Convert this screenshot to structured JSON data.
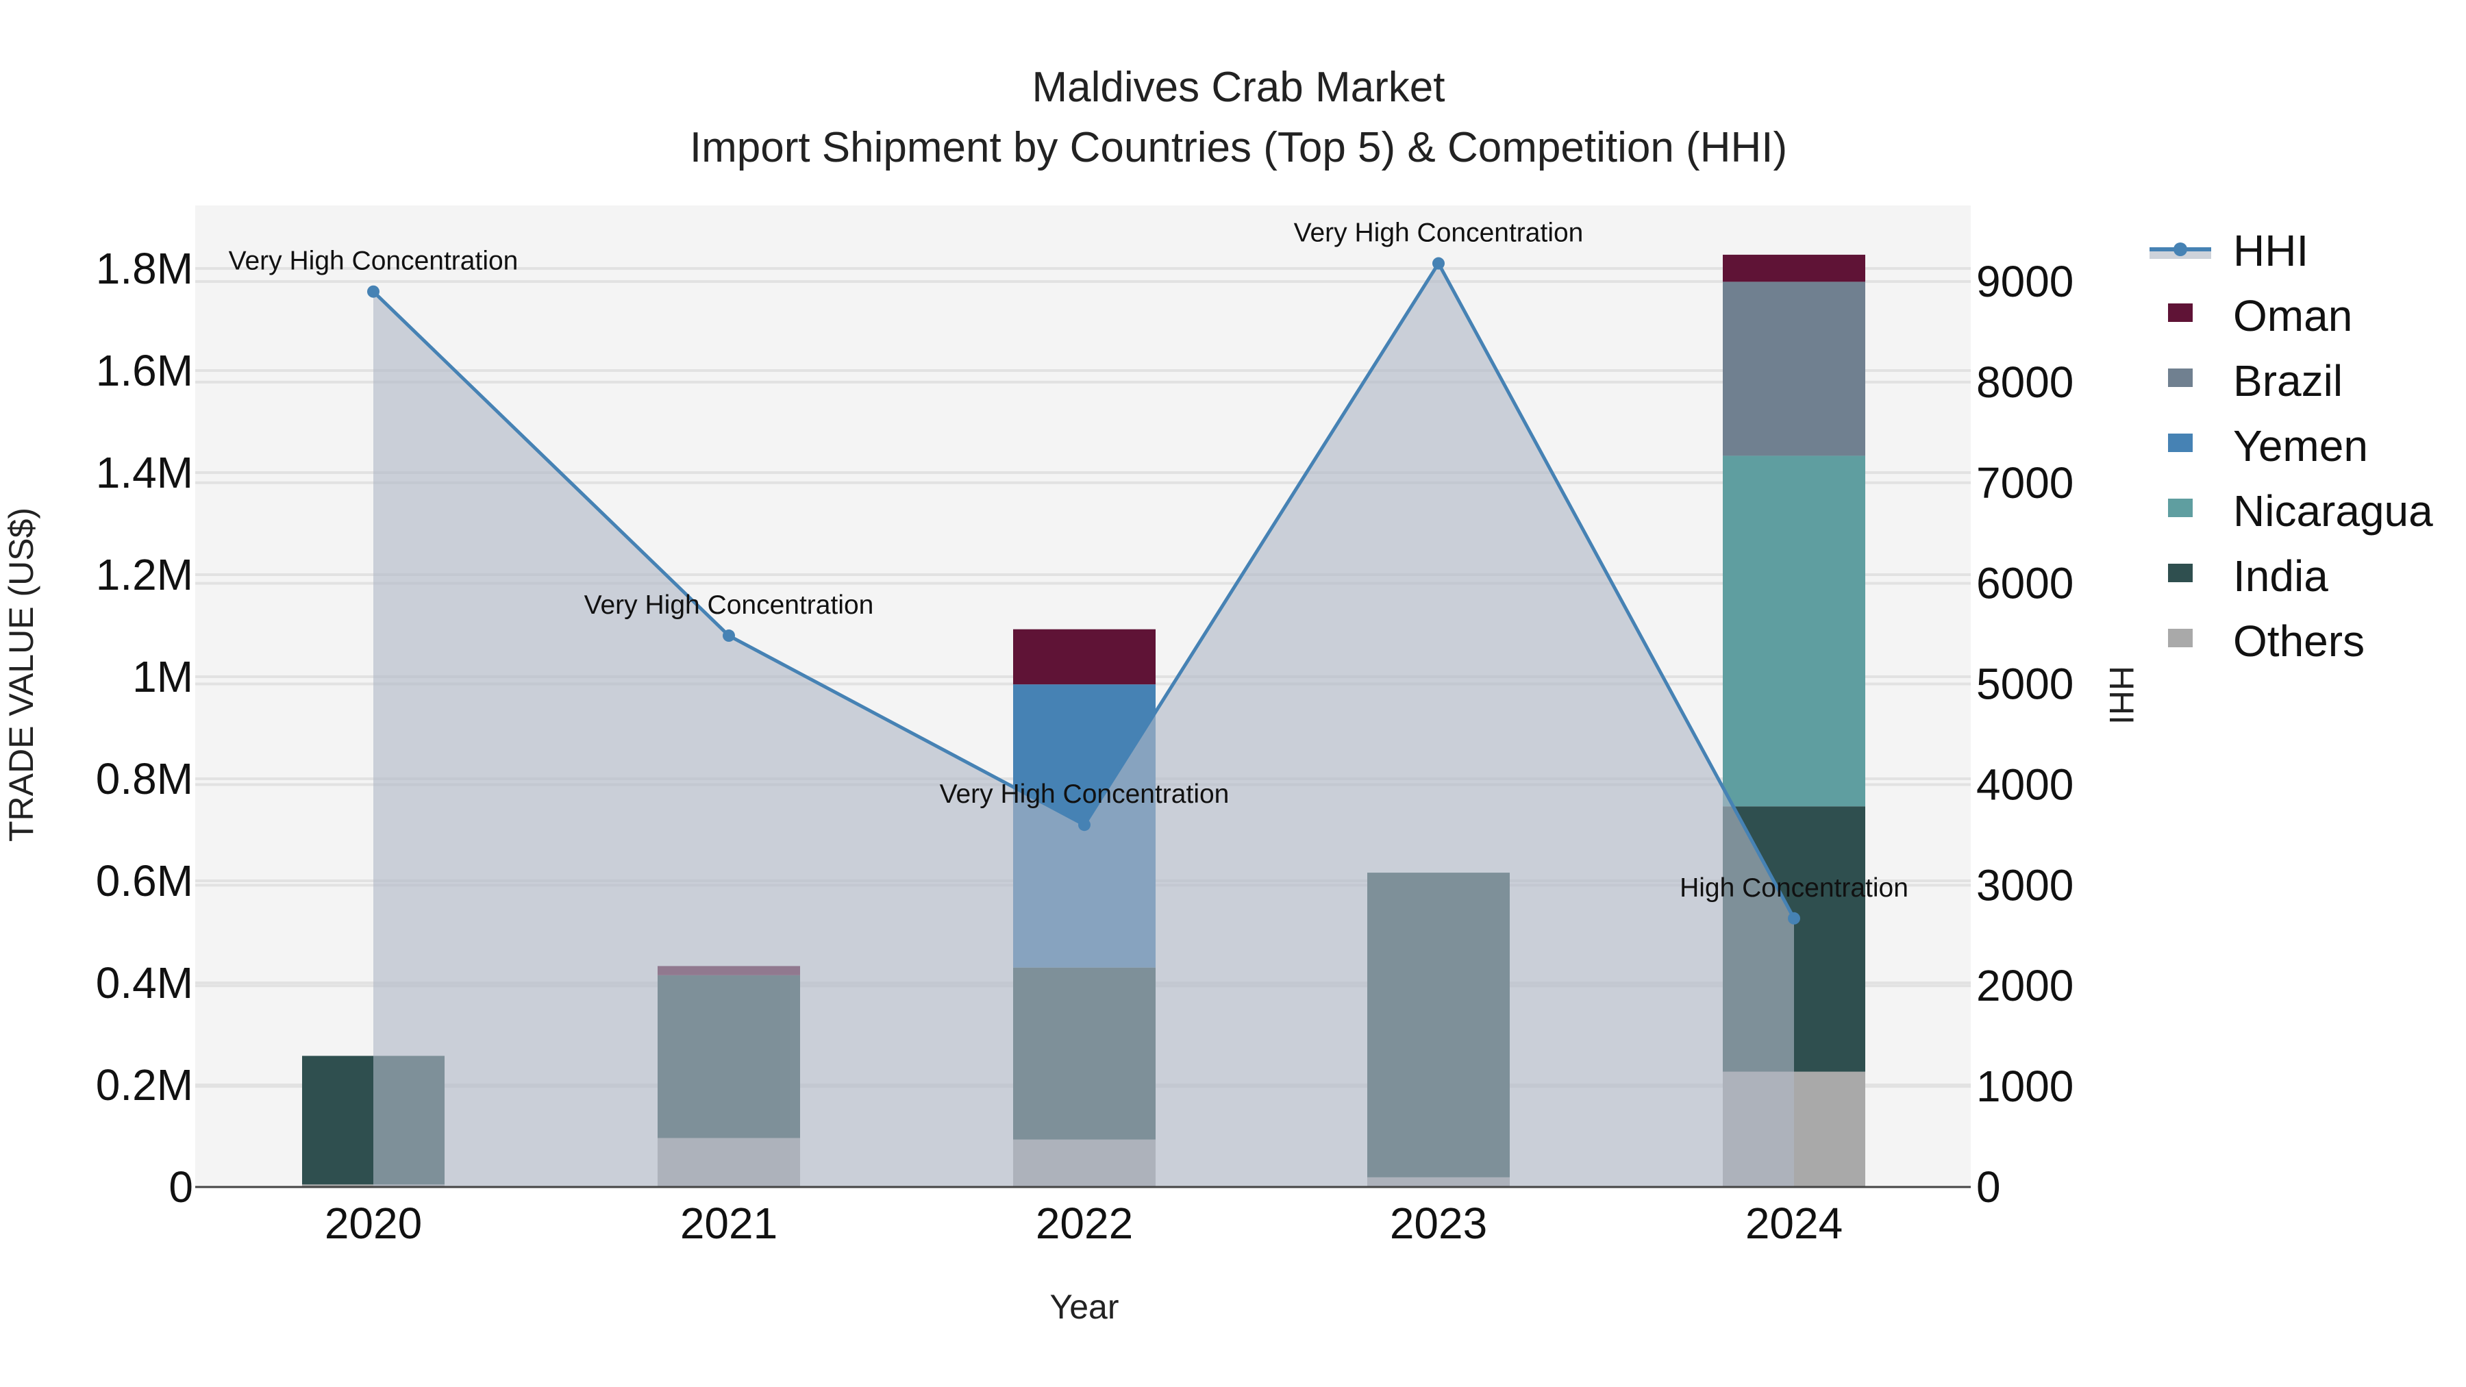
{
  "chart_data": {
    "type": "bar",
    "stacked": true,
    "title": "Maldives Crab Market",
    "subtitle": "Import Shipment by Countries (Top 5) & Competition (HHI)",
    "xlabel": "Year",
    "ylabel": "TRADE VALUE (US$)",
    "y2label": "HHI",
    "categories": [
      "2020",
      "2021",
      "2022",
      "2023",
      "2024"
    ],
    "ylim": [
      0,
      1900000
    ],
    "y2lim": [
      0,
      9700
    ],
    "yticks": [
      {
        "value": 0,
        "label": "0"
      },
      {
        "value": 200000,
        "label": "0.2M"
      },
      {
        "value": 400000,
        "label": "0.4M"
      },
      {
        "value": 600000,
        "label": "0.6M"
      },
      {
        "value": 800000,
        "label": "0.8M"
      },
      {
        "value": 1000000,
        "label": "1M"
      },
      {
        "value": 1200000,
        "label": "1.2M"
      },
      {
        "value": 1400000,
        "label": "1.4M"
      },
      {
        "value": 1600000,
        "label": "1.6M"
      },
      {
        "value": 1800000,
        "label": "1.8M"
      }
    ],
    "y2ticks": [
      {
        "value": 0,
        "label": "0"
      },
      {
        "value": 1000,
        "label": "1000"
      },
      {
        "value": 2000,
        "label": "2000"
      },
      {
        "value": 3000,
        "label": "3000"
      },
      {
        "value": 4000,
        "label": "4000"
      },
      {
        "value": 5000,
        "label": "5000"
      },
      {
        "value": 6000,
        "label": "6000"
      },
      {
        "value": 7000,
        "label": "7000"
      },
      {
        "value": 8000,
        "label": "8000"
      },
      {
        "value": 9000,
        "label": "9000"
      }
    ],
    "series": [
      {
        "name": "Others",
        "color": "#A9A9A9",
        "values": [
          5000,
          96000,
          93000,
          19000,
          226000
        ]
      },
      {
        "name": "India",
        "color": "#2F4F4F",
        "values": [
          252000,
          319000,
          337000,
          597000,
          520000
        ]
      },
      {
        "name": "Nicaragua",
        "color": "#5F9EA0",
        "values": [
          0,
          0,
          0,
          0,
          687000
        ]
      },
      {
        "name": "Yemen",
        "color": "#4682B4",
        "values": [
          0,
          0,
          555000,
          0,
          0
        ]
      },
      {
        "name": "Brazil",
        "color": "#708090",
        "values": [
          0,
          0,
          0,
          0,
          341000
        ]
      },
      {
        "name": "Oman",
        "color": "#5F1336",
        "values": [
          0,
          18000,
          108000,
          0,
          53000
        ]
      }
    ],
    "hhi": {
      "name": "HHI",
      "axis": "y2",
      "line_color": "#4682B4",
      "fill_color": "rgba(176,184,198,0.62)",
      "values": [
        8900,
        5480,
        3600,
        9180,
        2670
      ],
      "labels": [
        "Very High Concentration",
        "Very High Concentration",
        "Very High Concentration",
        "Very High Concentration",
        "High Concentration"
      ]
    },
    "legend": {
      "position": "right",
      "items": [
        {
          "name": "HHI",
          "type": "line",
          "color": "#4682B4"
        },
        {
          "name": "Oman",
          "type": "box",
          "color": "#5F1336"
        },
        {
          "name": "Brazil",
          "type": "box",
          "color": "#708090"
        },
        {
          "name": "Yemen",
          "type": "box",
          "color": "#4682B4"
        },
        {
          "name": "Nicaragua",
          "type": "box",
          "color": "#5F9EA0"
        },
        {
          "name": "India",
          "type": "box",
          "color": "#2F4F4F"
        },
        {
          "name": "Others",
          "type": "box",
          "color": "#A9A9A9"
        }
      ]
    },
    "grid": true,
    "plot_bgcolor": "#F4F4F4"
  }
}
